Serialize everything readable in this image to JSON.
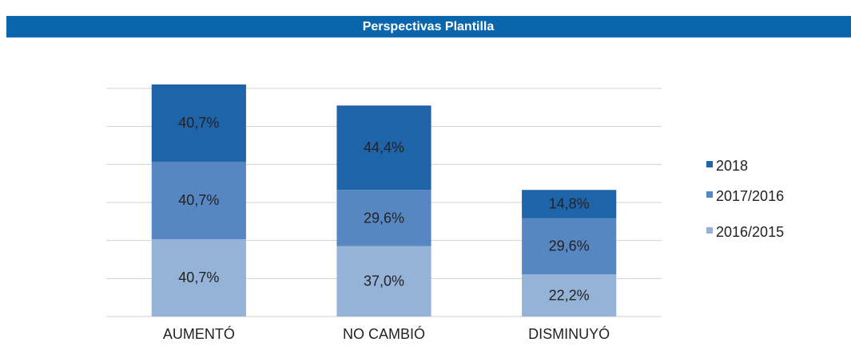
{
  "header": {
    "title": "Perspectivas Plantilla"
  },
  "chart_data": {
    "type": "stacked_bar",
    "categories": [
      "AUMENTÓ",
      "NO CAMBIÓ",
      "DISMINUYÓ"
    ],
    "series": [
      {
        "name": "2016/2015",
        "color": "#95b3d7",
        "values": [
          40.7,
          37.0,
          22.2
        ],
        "value_labels": [
          "40,7%",
          "37,0%",
          "22,2%"
        ]
      },
      {
        "name": "2017/2016",
        "color": "#5787c2",
        "values": [
          40.7,
          29.6,
          29.6
        ],
        "value_labels": [
          "40,7%",
          "29,6%",
          "29,6%"
        ]
      },
      {
        "name": "2018",
        "color": "#1f64a9",
        "values": [
          40.7,
          44.4,
          14.8
        ],
        "value_labels": [
          "40,7%",
          "44,4%",
          "14,8%"
        ]
      }
    ],
    "ylim": [
      0,
      125
    ],
    "yticks": [
      0,
      20,
      40,
      60,
      80,
      100,
      120
    ],
    "grid": true,
    "legend": "right"
  }
}
